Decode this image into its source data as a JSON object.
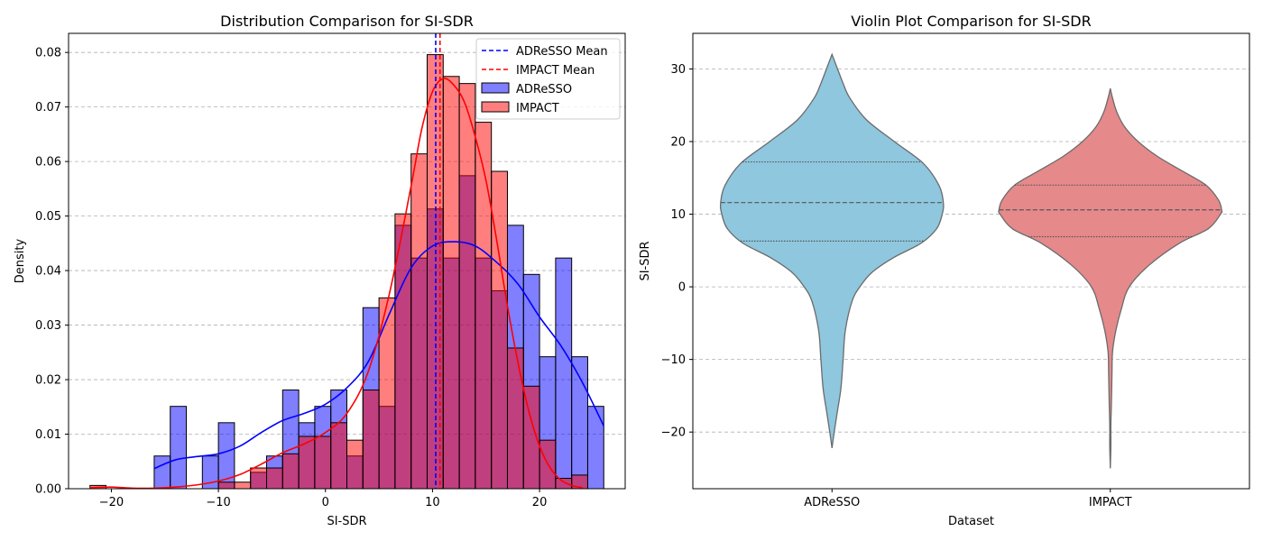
{
  "chart_data": [
    {
      "type": "histogram",
      "title": "Distribution Comparison for SI-SDR",
      "xlabel": "SI-SDR",
      "ylabel": "Density",
      "xlim": [
        -24,
        28
      ],
      "ylim": [
        0,
        0.0835
      ],
      "xticks": [
        -20,
        -10,
        0,
        10,
        20
      ],
      "xtick_labels": [
        "−20",
        "−10",
        "0",
        "10",
        "20"
      ],
      "yticks": [
        0.0,
        0.01,
        0.02,
        0.03,
        0.04,
        0.05,
        0.06,
        0.07,
        0.08
      ],
      "ytick_labels": [
        "0.00",
        "0.01",
        "0.02",
        "0.03",
        "0.04",
        "0.05",
        "0.06",
        "0.07",
        "0.08"
      ],
      "grid": "y",
      "legend_position": "top-right",
      "legend": [
        {
          "label": "ADReSSO Mean",
          "kind": "dashed-line",
          "color": "#0000ff"
        },
        {
          "label": "IMPACT Mean",
          "kind": "dashed-line",
          "color": "#ff0000"
        },
        {
          "label": "ADReSSO",
          "kind": "patch",
          "color": "#0000ff"
        },
        {
          "label": "IMPACT",
          "kind": "patch",
          "color": "#ff0000"
        }
      ],
      "series": [
        {
          "name": "ADReSSO",
          "color": "#0000ff",
          "bar_alpha": 0.5,
          "bin_width": 1.5,
          "bins": [
            [
              -16,
              0.006
            ],
            [
              -14.5,
              0.0151
            ],
            [
              -13,
              0.0
            ],
            [
              -11.5,
              0.006
            ],
            [
              -10,
              0.0121
            ],
            [
              -8.5,
              0.0
            ],
            [
              -7,
              0.003
            ],
            [
              -5.5,
              0.006
            ],
            [
              -4,
              0.0181
            ],
            [
              -2.5,
              0.0121
            ],
            [
              -1,
              0.0151
            ],
            [
              0.5,
              0.0181
            ],
            [
              2,
              0.006
            ],
            [
              3.5,
              0.0332
            ],
            [
              5,
              0.0151
            ],
            [
              6.5,
              0.0483
            ],
            [
              8,
              0.0423
            ],
            [
              9.5,
              0.0513
            ],
            [
              11,
              0.0423
            ],
            [
              12.5,
              0.0574
            ],
            [
              14,
              0.0423
            ],
            [
              15.5,
              0.0363
            ],
            [
              17,
              0.0483
            ],
            [
              18.5,
              0.0393
            ],
            [
              20,
              0.0242
            ],
            [
              21.5,
              0.0423
            ],
            [
              23,
              0.0242
            ],
            [
              24.5,
              0.0151
            ]
          ],
          "kde": [
            [
              -16,
              0.0037
            ],
            [
              -14,
              0.0053
            ],
            [
              -12,
              0.0059
            ],
            [
              -10,
              0.0064
            ],
            [
              -8,
              0.0078
            ],
            [
              -6,
              0.0103
            ],
            [
              -4,
              0.0125
            ],
            [
              -2,
              0.0138
            ],
            [
              0,
              0.0155
            ],
            [
              2,
              0.0185
            ],
            [
              4,
              0.0233
            ],
            [
              6,
              0.0322
            ],
            [
              8,
              0.0405
            ],
            [
              10,
              0.0445
            ],
            [
              12,
              0.0453
            ],
            [
              14,
              0.0445
            ],
            [
              16,
              0.0415
            ],
            [
              18,
              0.0375
            ],
            [
              20,
              0.0315
            ],
            [
              22,
              0.0262
            ],
            [
              24,
              0.0195
            ],
            [
              26,
              0.0115
            ]
          ],
          "mean": 10.3
        },
        {
          "name": "IMPACT",
          "color": "#ff0000",
          "bar_alpha": 0.5,
          "bin_width": 1.5,
          "bins": [
            [
              -22,
              0.0006
            ],
            [
              -20.5,
              0.0
            ],
            [
              -19,
              0.0
            ],
            [
              -17.5,
              0.0
            ],
            [
              -16,
              0.0
            ],
            [
              -14.5,
              0.0
            ],
            [
              -13,
              0.0
            ],
            [
              -11.5,
              0.0
            ],
            [
              -10,
              0.0012
            ],
            [
              -8.5,
              0.0012
            ],
            [
              -7,
              0.0038
            ],
            [
              -5.5,
              0.0038
            ],
            [
              -4,
              0.0064
            ],
            [
              -2.5,
              0.0096
            ],
            [
              -1,
              0.0096
            ],
            [
              0.5,
              0.0121
            ],
            [
              2,
              0.0089
            ],
            [
              3.5,
              0.0181
            ],
            [
              5,
              0.035
            ],
            [
              6.5,
              0.0504
            ],
            [
              8,
              0.0614
            ],
            [
              9.5,
              0.0796
            ],
            [
              11,
              0.0756
            ],
            [
              12.5,
              0.0743
            ],
            [
              14,
              0.0672
            ],
            [
              15.5,
              0.0582
            ],
            [
              17,
              0.0258
            ],
            [
              18.5,
              0.0188
            ],
            [
              20,
              0.0089
            ],
            [
              21.5,
              0.0019
            ],
            [
              23,
              0.0025
            ]
          ],
          "kde": [
            [
              -22,
              0.0002
            ],
            [
              -20,
              0.0003
            ],
            [
              -18,
              0.0001
            ],
            [
              -16,
              0.0001
            ],
            [
              -14,
              0.0003
            ],
            [
              -12,
              0.0007
            ],
            [
              -10,
              0.0014
            ],
            [
              -8,
              0.0026
            ],
            [
              -6,
              0.0045
            ],
            [
              -4,
              0.0066
            ],
            [
              -2,
              0.0082
            ],
            [
              0,
              0.0103
            ],
            [
              2,
              0.0138
            ],
            [
              4,
              0.0215
            ],
            [
              6,
              0.036
            ],
            [
              8,
              0.0555
            ],
            [
              9,
              0.066
            ],
            [
              10,
              0.0728
            ],
            [
              11,
              0.0752
            ],
            [
              12,
              0.074
            ],
            [
              13,
              0.0708
            ],
            [
              14,
              0.0645
            ],
            [
              15,
              0.0565
            ],
            [
              16,
              0.0455
            ],
            [
              17,
              0.0335
            ],
            [
              18,
              0.023
            ],
            [
              19,
              0.0142
            ],
            [
              20,
              0.0078
            ],
            [
              21,
              0.0038
            ],
            [
              22,
              0.0016
            ],
            [
              23,
              0.0006
            ],
            [
              24,
              0.0002
            ]
          ],
          "mean": 10.7
        }
      ]
    },
    {
      "type": "violin",
      "title": "Violin Plot Comparison for SI-SDR",
      "xlabel": "Dataset",
      "ylabel": "SI-SDR",
      "categories": [
        "ADReSSO",
        "IMPACT"
      ],
      "ylim": [
        -27.8,
        34.9
      ],
      "yticks": [
        -20,
        -10,
        0,
        10,
        20,
        30
      ],
      "ytick_labels": [
        "−20",
        "−10",
        "0",
        "10",
        "20",
        "30"
      ],
      "grid": "y",
      "series": [
        {
          "name": "ADReSSO",
          "color": "#8ec7de",
          "quartiles": [
            6.3,
            11.6,
            17.2
          ],
          "density_profile": [
            [
              -22.2,
              0.0
            ],
            [
              -20,
              0.02
            ],
            [
              -17,
              0.05
            ],
            [
              -14,
              0.08
            ],
            [
              -10,
              0.1
            ],
            [
              -6,
              0.12
            ],
            [
              -2,
              0.18
            ],
            [
              0,
              0.25
            ],
            [
              2,
              0.36
            ],
            [
              4,
              0.55
            ],
            [
              6,
              0.8
            ],
            [
              8,
              0.94
            ],
            [
              10,
              0.99
            ],
            [
              11.6,
              1.0
            ],
            [
              14,
              0.96
            ],
            [
              17,
              0.82
            ],
            [
              20,
              0.56
            ],
            [
              23,
              0.31
            ],
            [
              26,
              0.16
            ],
            [
              28,
              0.1
            ],
            [
              30,
              0.05
            ],
            [
              31.2,
              0.02
            ],
            [
              32,
              0.0
            ]
          ]
        },
        {
          "name": "IMPACT",
          "color": "#e5898b",
          "quartiles": [
            6.9,
            10.6,
            14.0
          ],
          "density_profile": [
            [
              -25,
              0.0
            ],
            [
              -22,
              0.005
            ],
            [
              -19,
              0.005
            ],
            [
              -16,
              0.01
            ],
            [
              -12,
              0.015
            ],
            [
              -9,
              0.02
            ],
            [
              -6,
              0.05
            ],
            [
              -3,
              0.1
            ],
            [
              0,
              0.17
            ],
            [
              3,
              0.35
            ],
            [
              6,
              0.62
            ],
            [
              8,
              0.88
            ],
            [
              10,
              0.99
            ],
            [
              10.6,
              1.0
            ],
            [
              12,
              0.97
            ],
            [
              14,
              0.86
            ],
            [
              16,
              0.64
            ],
            [
              18,
              0.42
            ],
            [
              20,
              0.25
            ],
            [
              22,
              0.13
            ],
            [
              24,
              0.06
            ],
            [
              26,
              0.02
            ],
            [
              27.3,
              0.0
            ]
          ]
        }
      ]
    }
  ]
}
